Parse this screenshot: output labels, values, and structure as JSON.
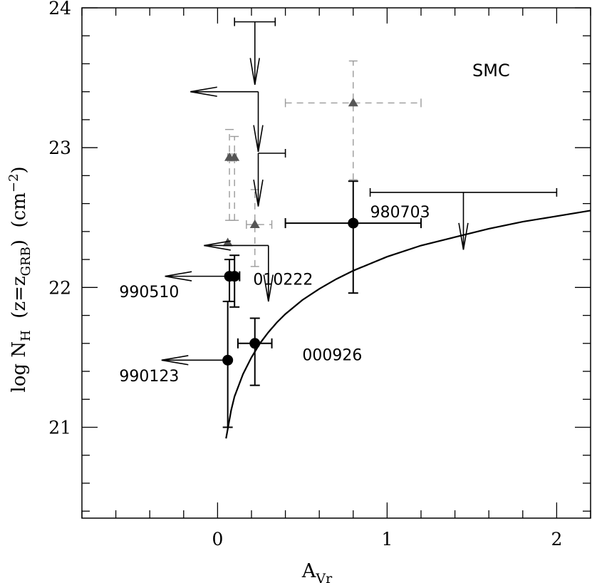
{
  "chart_data": {
    "type": "scatter",
    "xlabel": "A",
    "xlabel_sub": "Vr",
    "ylabel_parts": {
      "pre": "log N",
      "pre_sub": "H",
      "mid": "  (z=z",
      "mid_sub": "GRB",
      "post": ")  (cm",
      "post_sup": "−2",
      "end": ")"
    },
    "xlim": [
      -0.8,
      2.2
    ],
    "ylim": [
      20.35,
      24
    ],
    "xticks": [
      0,
      1,
      2
    ],
    "yticks": [
      21,
      22,
      23,
      24
    ],
    "xtick_labels": [
      "0",
      "1",
      "2"
    ],
    "ytick_labels": [
      "21",
      "22",
      "23",
      "24"
    ],
    "x_minor_step": 0.2,
    "y_minor_step": 0.2,
    "grid": false,
    "model_label": "SMC",
    "model_curve": {
      "name": "SMC",
      "x": [
        0.05,
        0.08,
        0.1,
        0.15,
        0.2,
        0.25,
        0.3,
        0.35,
        0.4,
        0.5,
        0.6,
        0.7,
        0.8,
        0.9,
        1.0,
        1.2,
        1.4,
        1.6,
        1.8,
        2.0,
        2.2
      ],
      "y": [
        20.92,
        21.12,
        21.22,
        21.38,
        21.5,
        21.6,
        21.68,
        21.75,
        21.81,
        21.91,
        21.99,
        22.06,
        22.12,
        22.17,
        22.22,
        22.3,
        22.36,
        22.42,
        22.47,
        22.51,
        22.55
      ]
    },
    "detections": [
      {
        "label": "000926",
        "x": 0.22,
        "y": 21.6,
        "xerr": [
          0.1,
          0.1
        ],
        "yerr": [
          0.3,
          0.18
        ]
      },
      {
        "label": "980703",
        "x": 0.8,
        "y": 22.46,
        "xerr": [
          0.4,
          0.4
        ],
        "yerr": [
          0.5,
          0.3
        ]
      },
      {
        "label": "010222",
        "x": 0.1,
        "y": 22.08,
        "xerr": [
          0.03,
          0.03
        ],
        "yerr": [
          0.22,
          0.15
        ]
      },
      {
        "label": "990510",
        "x": 0.07,
        "y": 22.08,
        "xerr": [
          0.0,
          0.0
        ],
        "yerr": [
          0.18,
          0.12
        ]
      },
      {
        "label": "990123",
        "x": 0.06,
        "y": 21.48,
        "xerr": [
          0.0,
          0.0
        ],
        "yerr": [
          0.48,
          0.42
        ]
      }
    ],
    "annotations": [
      {
        "text": "000926",
        "x": 0.5,
        "y": 21.48
      },
      {
        "text": "980703",
        "x": 0.9,
        "y": 22.5
      },
      {
        "text": "010222",
        "x": 0.21,
        "y": 22.02
      },
      {
        "text": "990510",
        "x": -0.58,
        "y": 21.93
      },
      {
        "text": "990123",
        "x": -0.58,
        "y": 21.33
      }
    ],
    "upper_limits": [
      {
        "x": 0.22,
        "y": 23.9,
        "xerr": [
          0.12,
          0.12
        ],
        "dir": "down",
        "arrow_to_y": 23.45
      },
      {
        "x": 0.24,
        "y": 23.4,
        "xerr": [
          0.0,
          0.0
        ],
        "dir": "down",
        "arrow_to_y": 22.97
      },
      {
        "x": 0.24,
        "y": 23.4,
        "xerr": [
          0.0,
          0.0
        ],
        "dir": "left",
        "arrow_to_x": -0.16
      },
      {
        "x": 0.24,
        "y": 22.96,
        "xerr": [
          0.0,
          0.16
        ],
        "dir": "down",
        "arrow_to_y": 22.58
      },
      {
        "x": 0.3,
        "y": 22.3,
        "xerr": [
          0.0,
          0.0
        ],
        "dir": "down",
        "arrow_to_y": 21.9
      },
      {
        "x": 0.3,
        "y": 22.3,
        "xerr": [
          0.0,
          0.0
        ],
        "dir": "left",
        "arrow_to_x": -0.08
      },
      {
        "x": 1.45,
        "y": 22.68,
        "xerr": [
          0.55,
          0.55
        ],
        "dir": "down",
        "arrow_to_y": 22.27
      },
      {
        "x": 0.07,
        "y": 22.08,
        "xerr": [
          0.0,
          0.0
        ],
        "dir": "left",
        "arrow_to_x": -0.31
      },
      {
        "x": 0.06,
        "y": 21.48,
        "xerr": [
          0.0,
          0.0
        ],
        "dir": "left",
        "arrow_to_x": -0.33
      }
    ],
    "triangles": [
      {
        "x": 0.07,
        "y": 22.93,
        "xerr": [
          0.01,
          0.01
        ],
        "yerr": [
          0.45,
          0.2
        ],
        "dashed": true
      },
      {
        "x": 0.1,
        "y": 22.93,
        "xerr": [
          0.01,
          0.01
        ],
        "yerr": [
          0.45,
          0.15
        ],
        "dashed": true
      },
      {
        "x": 0.22,
        "y": 22.45,
        "xerr": [
          0.05,
          0.1
        ],
        "yerr": [
          0.3,
          0.25
        ],
        "dashed": true
      },
      {
        "x": 0.8,
        "y": 23.32,
        "xerr": [
          0.4,
          0.4
        ],
        "yerr": [
          0.55,
          0.3
        ],
        "dashed": true
      },
      {
        "x": 0.06,
        "y": 22.32,
        "xerr": [
          0.0,
          0.0
        ],
        "yerr": [
          0.0,
          0.0
        ],
        "dashed": false
      }
    ],
    "colors": {
      "detection": "#000000",
      "triangle": "#555555",
      "dashed_err": "#9a9a9a",
      "line": "#000000"
    }
  }
}
